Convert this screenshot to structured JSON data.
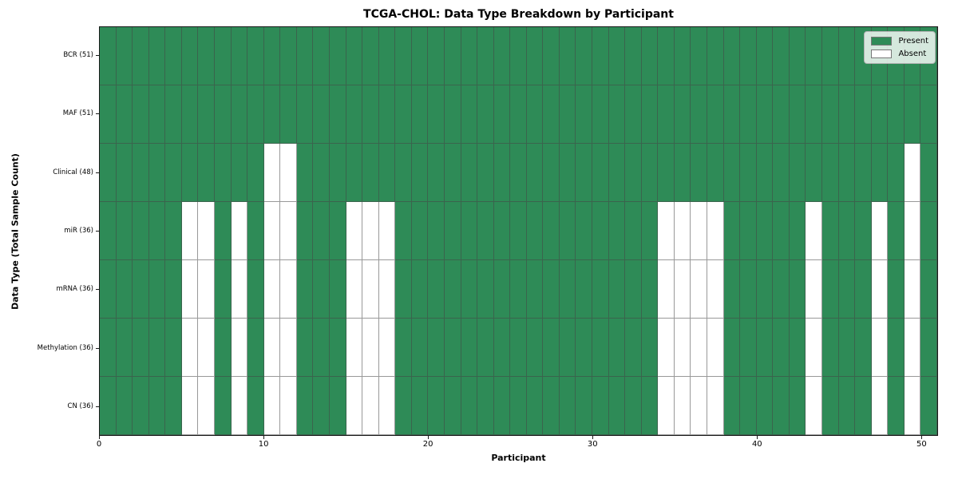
{
  "chart_data": {
    "type": "heatmap",
    "title": "TCGA-CHOL: Data Type Breakdown by Participant",
    "xlabel": "Participant",
    "ylabel": "Data Type (Total Sample Count)",
    "n_participants": 51,
    "xlim": [
      0,
      51
    ],
    "x_ticks": [
      "0",
      "10",
      "20",
      "30",
      "40",
      "50"
    ],
    "x_tick_values": [
      0,
      10,
      20,
      30,
      40,
      50
    ],
    "grid": "per-cell edges",
    "rows": [
      {
        "label": "BCR (51)",
        "present_count": 51,
        "absent_participants": []
      },
      {
        "label": "MAF (51)",
        "present_count": 51,
        "absent_participants": []
      },
      {
        "label": "Clinical (48)",
        "present_count": 48,
        "absent_participants": [
          10,
          11,
          49
        ]
      },
      {
        "label": "miR (36)",
        "present_count": 36,
        "absent_participants": [
          5,
          6,
          8,
          10,
          11,
          15,
          16,
          17,
          34,
          35,
          36,
          37,
          43,
          47,
          49
        ]
      },
      {
        "label": "mRNA (36)",
        "present_count": 36,
        "absent_participants": [
          5,
          6,
          8,
          10,
          11,
          15,
          16,
          17,
          34,
          35,
          36,
          37,
          43,
          47,
          49
        ]
      },
      {
        "label": "Methylation (36)",
        "present_count": 36,
        "absent_participants": [
          5,
          6,
          8,
          10,
          11,
          15,
          16,
          17,
          34,
          35,
          36,
          37,
          43,
          47,
          49
        ]
      },
      {
        "label": "CN (36)",
        "present_count": 36,
        "absent_participants": [
          5,
          6,
          8,
          10,
          11,
          15,
          16,
          17,
          34,
          35,
          36,
          37,
          43,
          47,
          49
        ]
      }
    ],
    "legend": {
      "position": "upper right",
      "entries": [
        {
          "label": "Present",
          "color": "#2e8b57"
        },
        {
          "label": "Absent",
          "color": "#ffffff"
        }
      ]
    },
    "colors": {
      "present": "#2e8b57",
      "absent": "#ffffff",
      "cell_edge": "rgba(70,70,70,0.55)",
      "spine": "#1a1a1a"
    }
  }
}
